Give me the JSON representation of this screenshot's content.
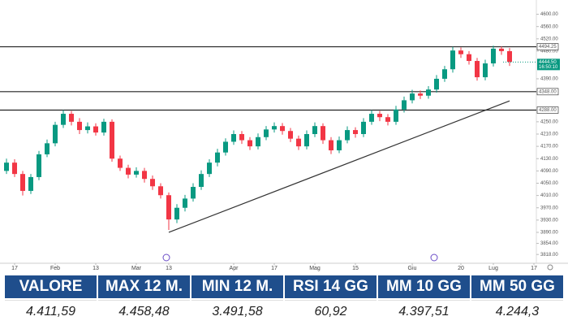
{
  "chart_data": {
    "type": "candlestick",
    "up_color": "#089981",
    "down_color": "#f23645",
    "xlim": [
      0,
      65
    ],
    "xticks": [
      {
        "value": 1,
        "label": "17"
      },
      {
        "value": 6,
        "label": "Feb"
      },
      {
        "value": 11,
        "label": "13"
      },
      {
        "value": 16,
        "label": "Mar"
      },
      {
        "value": 20,
        "label": "13"
      },
      {
        "value": 28,
        "label": "Apr"
      },
      {
        "value": 33,
        "label": "17"
      },
      {
        "value": 38,
        "label": "Mag"
      },
      {
        "value": 43,
        "label": "15"
      },
      {
        "value": 50,
        "label": "Giu"
      },
      {
        "value": 56,
        "label": "20"
      },
      {
        "value": 60,
        "label": "Lug"
      },
      {
        "value": 65,
        "label": "17"
      }
    ],
    "ylim": [
      3800,
      4620
    ],
    "yticks": [
      {
        "value": 4600,
        "label": "4600.00"
      },
      {
        "value": 4560,
        "label": "4560.00"
      },
      {
        "value": 4520,
        "label": "4520.00"
      },
      {
        "value": 4480,
        "label": "4480.00"
      },
      {
        "value": 4390,
        "label": "4390.00"
      },
      {
        "value": 4250,
        "label": "4250.00"
      },
      {
        "value": 4210,
        "label": "4210.00"
      },
      {
        "value": 4170,
        "label": "4170.00"
      },
      {
        "value": 4130,
        "label": "4130.00"
      },
      {
        "value": 4090,
        "label": "4090.00"
      },
      {
        "value": 4050,
        "label": "4050.00"
      },
      {
        "value": 4010,
        "label": "4010.00"
      },
      {
        "value": 3970,
        "label": "3970.00"
      },
      {
        "value": 3930,
        "label": "3930.00"
      },
      {
        "value": 3890,
        "label": "3890.00"
      },
      {
        "value": 3854,
        "label": "3854.00"
      },
      {
        "value": 3818,
        "label": "3818.00"
      }
    ],
    "ohlc": [
      [
        4090,
        4130,
        4080,
        4117
      ],
      [
        4117,
        4128,
        4070,
        4080
      ],
      [
        4080,
        4090,
        4010,
        4025
      ],
      [
        4025,
        4080,
        4015,
        4070
      ],
      [
        4070,
        4155,
        4060,
        4144
      ],
      [
        4144,
        4192,
        4135,
        4180
      ],
      [
        4180,
        4250,
        4170,
        4240
      ],
      [
        4240,
        4288,
        4230,
        4276
      ],
      [
        4276,
        4285,
        4238,
        4250
      ],
      [
        4250,
        4262,
        4210,
        4223
      ],
      [
        4223,
        4248,
        4212,
        4235
      ],
      [
        4235,
        4245,
        4205,
        4215
      ],
      [
        4215,
        4260,
        4205,
        4250
      ],
      [
        4250,
        4258,
        4120,
        4130
      ],
      [
        4130,
        4140,
        4090,
        4100
      ],
      [
        4100,
        4110,
        4066,
        4078
      ],
      [
        4078,
        4102,
        4068,
        4090
      ],
      [
        4090,
        4100,
        4052,
        4064
      ],
      [
        4064,
        4075,
        4028,
        4040
      ],
      [
        4040,
        4050,
        4000,
        4011
      ],
      [
        4011,
        4020,
        3898,
        3932
      ],
      [
        3932,
        3982,
        3920,
        3970
      ],
      [
        3970,
        4012,
        3958,
        4000
      ],
      [
        4000,
        4050,
        3990,
        4038
      ],
      [
        4038,
        4092,
        4028,
        4080
      ],
      [
        4080,
        4128,
        4070,
        4117
      ],
      [
        4117,
        4162,
        4105,
        4150
      ],
      [
        4150,
        4196,
        4140,
        4185
      ],
      [
        4185,
        4222,
        4175,
        4210
      ],
      [
        4210,
        4220,
        4178,
        4190
      ],
      [
        4190,
        4200,
        4158,
        4170
      ],
      [
        4170,
        4212,
        4160,
        4200
      ],
      [
        4200,
        4236,
        4190,
        4225
      ],
      [
        4225,
        4248,
        4215,
        4236
      ],
      [
        4236,
        4246,
        4208,
        4220
      ],
      [
        4220,
        4230,
        4184,
        4195
      ],
      [
        4195,
        4205,
        4158,
        4170
      ],
      [
        4170,
        4222,
        4160,
        4210
      ],
      [
        4210,
        4248,
        4200,
        4236
      ],
      [
        4236,
        4245,
        4178,
        4190
      ],
      [
        4190,
        4200,
        4145,
        4157
      ],
      [
        4157,
        4202,
        4148,
        4190
      ],
      [
        4190,
        4235,
        4180,
        4223
      ],
      [
        4223,
        4232,
        4198,
        4210
      ],
      [
        4210,
        4262,
        4200,
        4250
      ],
      [
        4250,
        4288,
        4240,
        4276
      ],
      [
        4276,
        4285,
        4252,
        4265
      ],
      [
        4265,
        4275,
        4238,
        4250
      ],
      [
        4250,
        4302,
        4240,
        4290
      ],
      [
        4290,
        4332,
        4280,
        4320
      ],
      [
        4320,
        4354,
        4310,
        4342
      ],
      [
        4342,
        4352,
        4324,
        4335
      ],
      [
        4335,
        4366,
        4325,
        4355
      ],
      [
        4355,
        4402,
        4345,
        4390
      ],
      [
        4390,
        4432,
        4380,
        4421
      ],
      [
        4421,
        4494,
        4410,
        4482
      ],
      [
        4482,
        4492,
        4458,
        4470
      ],
      [
        4470,
        4480,
        4436,
        4448
      ],
      [
        4448,
        4458,
        4384,
        4395
      ],
      [
        4395,
        4452,
        4385,
        4440
      ],
      [
        4440,
        4498,
        4430,
        4488
      ],
      [
        4488,
        4495,
        4468,
        4480
      ],
      [
        4480,
        4490,
        4432,
        4445
      ]
    ],
    "hlines": [
      {
        "value": 4494.25,
        "label": "4494.25"
      },
      {
        "value": 4348,
        "label": "4348.00"
      },
      {
        "value": 4288,
        "label": "4288.00"
      }
    ],
    "price_tag": {
      "value": 4444.5,
      "label": "4444.50",
      "time": "16:50:10"
    },
    "trendline": {
      "x": [
        20,
        62
      ],
      "y": [
        3890,
        4318
      ]
    }
  },
  "table": {
    "headers": [
      "VALORE",
      "MAX 12 M.",
      "MIN 12 M.",
      "RSI 14 GG",
      "MM 10 GG",
      "MM 50 GG"
    ],
    "rows": [
      [
        "4.411,59",
        "4.458,48",
        "3.491,58",
        "60,92",
        "4.397,51",
        "4.244,3"
      ]
    ]
  }
}
